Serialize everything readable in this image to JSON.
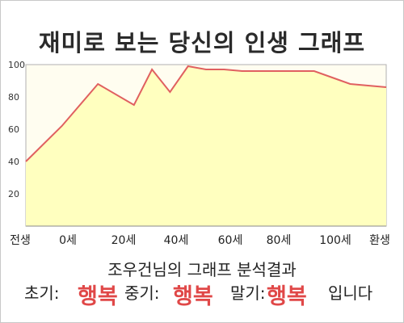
{
  "title": "재미로 보는 당신의 인생 그래프",
  "chart_data": {
    "type": "area",
    "x": [
      0,
      10,
      20,
      30,
      35,
      40,
      45,
      50,
      55,
      60,
      65,
      70,
      75,
      80,
      85,
      90,
      100
    ],
    "values": [
      40,
      62,
      88,
      75,
      97,
      83,
      99,
      97,
      97,
      96,
      96,
      96,
      96,
      96,
      92,
      88,
      86
    ],
    "x_ticks": [
      "전생",
      "0세",
      "20세",
      "40세",
      "60세",
      "80세",
      "100세",
      "환생"
    ],
    "y_ticks": [
      20,
      40,
      60,
      80,
      100
    ],
    "ylim": [
      0,
      100
    ],
    "grid": false,
    "colors": {
      "line": "#e06060",
      "fill": "#ffffbf",
      "plot_bg": "#fffdf0"
    }
  },
  "result": {
    "heading": "조우건님의 그래프 분석결과",
    "early_label": "초기:",
    "early_value": "행복",
    "middle_label": "중기:",
    "middle_value": "행복",
    "late_label": "말기:",
    "late_value": "행복",
    "suffix": "입니다"
  }
}
